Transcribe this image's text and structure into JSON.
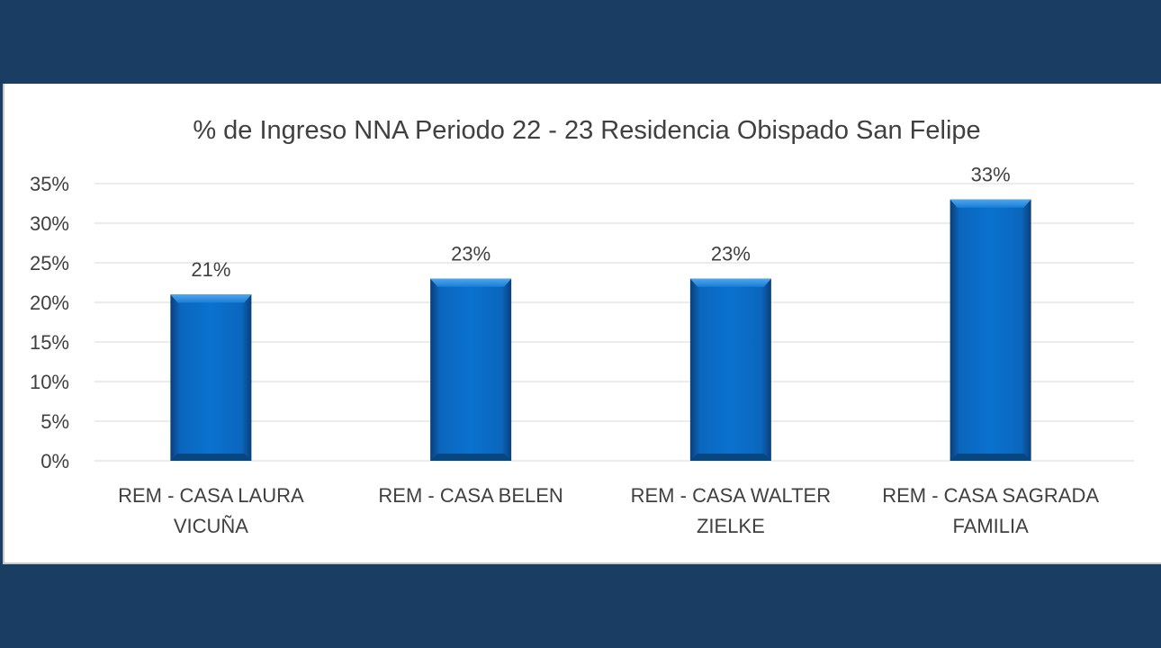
{
  "colors": {
    "background": "#1a3d63",
    "panel": "#ffffff",
    "bar": "#0a6cc4",
    "gridline": "#d9d9d9",
    "text": "#404040"
  },
  "chart_data": {
    "type": "bar",
    "title": "% de Ingreso NNA Periodo 22 - 23 Residencia Obispado San Felipe",
    "xlabel": "",
    "ylabel": "",
    "categories": [
      [
        "REM - CASA LAURA",
        "VICUÑA"
      ],
      [
        "REM - CASA BELEN"
      ],
      [
        "REM - CASA WALTER",
        "ZIELKE"
      ],
      [
        "REM - CASA SAGRADA",
        "FAMILIA"
      ]
    ],
    "values": [
      21,
      23,
      23,
      33
    ],
    "data_labels": [
      "21%",
      "23%",
      "23%",
      "33%"
    ],
    "ylim": [
      0,
      35
    ],
    "yticks": [
      0,
      5,
      10,
      15,
      20,
      25,
      30,
      35
    ],
    "ytick_labels": [
      "0%",
      "5%",
      "10%",
      "15%",
      "20%",
      "25%",
      "30%",
      "35%"
    ],
    "grid": true,
    "legend": "none"
  }
}
